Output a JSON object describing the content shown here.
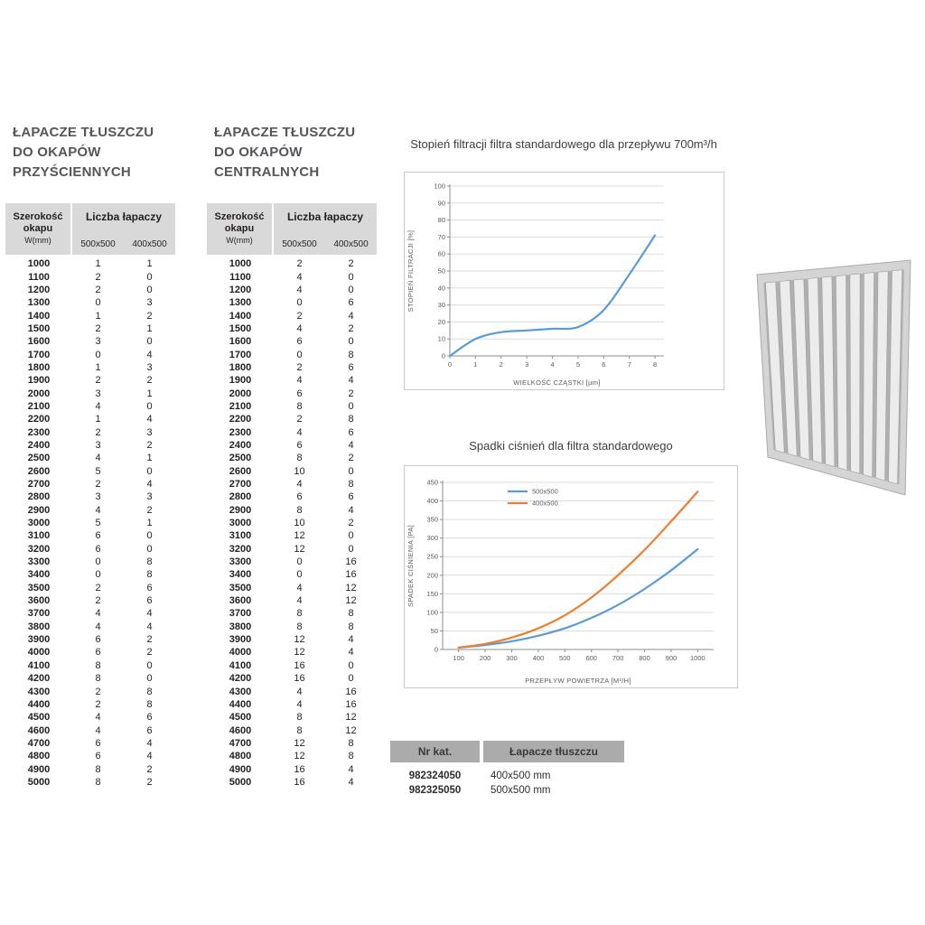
{
  "colors": {
    "chart_blue": "#5b9bd5",
    "chart_orange": "#ed7d31",
    "table_header_bg": "#d9d9d9",
    "catalog_header_bg": "#ababab",
    "title_text": "#55565a"
  },
  "wall_table": {
    "title_lines": [
      "ŁAPACZE TŁUSZCZU",
      "DO OKAPÓW",
      "PRZYŚCIENNYCH"
    ],
    "header": {
      "width_label_1": "Szerokość",
      "width_label_2": "okapu",
      "width_label_3": "W(mm)",
      "group_label": "Liczba łapaczy",
      "col_500": "500x500",
      "col_400": "400x500"
    },
    "rows": [
      [
        1000,
        1,
        1
      ],
      [
        1100,
        2,
        0
      ],
      [
        1200,
        2,
        0
      ],
      [
        1300,
        0,
        3
      ],
      [
        1400,
        1,
        2
      ],
      [
        1500,
        2,
        1
      ],
      [
        1600,
        3,
        0
      ],
      [
        1700,
        0,
        4
      ],
      [
        1800,
        1,
        3
      ],
      [
        1900,
        2,
        2
      ],
      [
        2000,
        3,
        1
      ],
      [
        2100,
        4,
        0
      ],
      [
        2200,
        1,
        4
      ],
      [
        2300,
        2,
        3
      ],
      [
        2400,
        3,
        2
      ],
      [
        2500,
        4,
        1
      ],
      [
        2600,
        5,
        0
      ],
      [
        2700,
        2,
        4
      ],
      [
        2800,
        3,
        3
      ],
      [
        2900,
        4,
        2
      ],
      [
        3000,
        5,
        1
      ],
      [
        3100,
        6,
        0
      ],
      [
        3200,
        6,
        0
      ],
      [
        3300,
        0,
        8
      ],
      [
        3400,
        0,
        8
      ],
      [
        3500,
        2,
        6
      ],
      [
        3600,
        2,
        6
      ],
      [
        3700,
        4,
        4
      ],
      [
        3800,
        4,
        4
      ],
      [
        3900,
        6,
        2
      ],
      [
        4000,
        6,
        2
      ],
      [
        4100,
        8,
        0
      ],
      [
        4200,
        8,
        0
      ],
      [
        4300,
        2,
        8
      ],
      [
        4400,
        2,
        8
      ],
      [
        4500,
        4,
        6
      ],
      [
        4600,
        4,
        6
      ],
      [
        4700,
        6,
        4
      ],
      [
        4800,
        6,
        4
      ],
      [
        4900,
        8,
        2
      ],
      [
        5000,
        8,
        2
      ]
    ]
  },
  "central_table": {
    "title_lines": [
      "ŁAPACZE TŁUSZCZU",
      "DO OKAPÓW",
      "CENTRALNYCH"
    ],
    "header": {
      "width_label_1": "Szerokość",
      "width_label_2": "okapu",
      "width_label_3": "W(mm)",
      "group_label": "Liczba łapaczy",
      "col_500": "500x500",
      "col_400": "400x500"
    },
    "rows": [
      [
        1000,
        2,
        2
      ],
      [
        1100,
        4,
        0
      ],
      [
        1200,
        4,
        0
      ],
      [
        1300,
        0,
        6
      ],
      [
        1400,
        2,
        4
      ],
      [
        1500,
        4,
        2
      ],
      [
        1600,
        6,
        0
      ],
      [
        1700,
        0,
        8
      ],
      [
        1800,
        2,
        6
      ],
      [
        1900,
        4,
        4
      ],
      [
        2000,
        6,
        2
      ],
      [
        2100,
        8,
        0
      ],
      [
        2200,
        2,
        8
      ],
      [
        2300,
        4,
        6
      ],
      [
        2400,
        6,
        4
      ],
      [
        2500,
        8,
        2
      ],
      [
        2600,
        10,
        0
      ],
      [
        2700,
        4,
        8
      ],
      [
        2800,
        6,
        6
      ],
      [
        2900,
        8,
        4
      ],
      [
        3000,
        10,
        2
      ],
      [
        3100,
        12,
        0
      ],
      [
        3200,
        12,
        0
      ],
      [
        3300,
        0,
        16
      ],
      [
        3400,
        0,
        16
      ],
      [
        3500,
        4,
        12
      ],
      [
        3600,
        4,
        12
      ],
      [
        3700,
        8,
        8
      ],
      [
        3800,
        8,
        8
      ],
      [
        3900,
        12,
        4
      ],
      [
        4000,
        12,
        4
      ],
      [
        4100,
        16,
        0
      ],
      [
        4200,
        16,
        0
      ],
      [
        4300,
        4,
        16
      ],
      [
        4400,
        4,
        16
      ],
      [
        4500,
        8,
        12
      ],
      [
        4600,
        8,
        12
      ],
      [
        4700,
        12,
        8
      ],
      [
        4800,
        12,
        8
      ],
      [
        4900,
        16,
        4
      ],
      [
        5000,
        16,
        4
      ]
    ]
  },
  "chart_data": [
    {
      "type": "line",
      "title": "Stopień filtracji filtra standardowego dla przepływu 700m³/h",
      "xlabel": "WIELKOŚĆ CZĄSTKI [µm]",
      "ylabel": "STOPIEŃ FILTRACJI [%]",
      "xlim": [
        0,
        8.35
      ],
      "ylim": [
        0,
        100
      ],
      "xticks": [
        0,
        1,
        2,
        3,
        4,
        5,
        6,
        7,
        8
      ],
      "yticks": [
        0,
        10,
        20,
        30,
        40,
        50,
        60,
        70,
        80,
        90,
        100
      ],
      "grid": "horizontal",
      "series": [
        {
          "name": "stopień filtracji",
          "color": "#5b9bd5",
          "x": [
            0,
            1,
            2,
            3,
            4,
            5,
            6,
            7,
            8
          ],
          "y": [
            0,
            10,
            14,
            15,
            16,
            17,
            27,
            48,
            71
          ]
        }
      ]
    },
    {
      "type": "line",
      "title": "Spadki ciśnień dla filtra standardowego",
      "xlabel": "PRZEPŁYW POWIETRZA [M³/H]",
      "ylabel": "SPADEK CIŚNIENIA [PA]",
      "xlim": [
        40,
        1060
      ],
      "ylim": [
        0,
        450
      ],
      "xticks": [
        100,
        200,
        300,
        400,
        500,
        600,
        700,
        800,
        900,
        1000
      ],
      "yticks": [
        0,
        50,
        100,
        150,
        200,
        250,
        300,
        350,
        400,
        450
      ],
      "grid": "horizontal",
      "legend_position": "top-center",
      "series": [
        {
          "name": "500x500",
          "color": "#5b9bd5",
          "x": [
            100,
            200,
            300,
            400,
            500,
            600,
            700,
            800,
            900,
            1000
          ],
          "y": [
            5,
            12,
            22,
            37,
            57,
            85,
            120,
            163,
            213,
            270
          ]
        },
        {
          "name": "400x500",
          "color": "#ed7d31",
          "x": [
            100,
            200,
            300,
            400,
            500,
            600,
            700,
            800,
            900,
            1000
          ],
          "y": [
            5,
            15,
            32,
            57,
            92,
            140,
            200,
            268,
            345,
            425
          ]
        }
      ]
    }
  ],
  "catalog_table": {
    "headers": [
      "Nr kat.",
      "Łapacze tłuszczu"
    ],
    "rows": [
      [
        "982324050",
        "400x500 mm"
      ],
      [
        "982325050",
        "500x500 mm"
      ]
    ]
  },
  "product_image": {
    "name": "grease-filter-photo",
    "slat_count": 10
  }
}
